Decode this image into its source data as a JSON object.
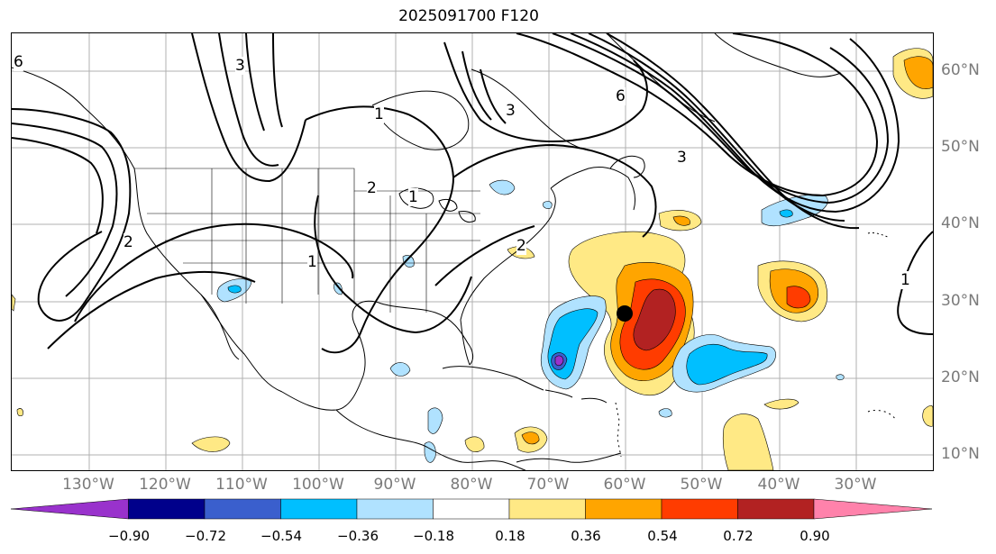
{
  "title": "2025091700 F120",
  "lat_labels": [
    "60°N",
    "50°N",
    "40°N",
    "30°N",
    "20°N",
    "10°N"
  ],
  "lon_labels": [
    "130°W",
    "120°W",
    "110°W",
    "100°W",
    "90°W",
    "80°W",
    "70°W",
    "60°W",
    "50°W",
    "40°W",
    "30°W"
  ],
  "contour_labels": [
    "6",
    "3",
    "1",
    "3",
    "2",
    "2",
    "1",
    "1",
    "6",
    "1",
    "3",
    "2"
  ],
  "colorbar": {
    "ticks": [
      "−0.90",
      "−0.72",
      "−0.54",
      "−0.36",
      "−0.18",
      "0.18",
      "0.36",
      "0.54",
      "0.72",
      "0.90"
    ],
    "colors": [
      "#9932cc",
      "#00008b",
      "#3a5fcd",
      "#00bfff",
      "#b0e2ff",
      "#ffffff",
      "#ffe985",
      "#ffa500",
      "#ff3c00",
      "#b22222",
      "#ff82ab"
    ]
  },
  "colors": {
    "pos_low": "#ffe985",
    "pos_mid": "#ffa500",
    "pos_high": "#ff3c00",
    "pos_max": "#b22222",
    "neg_low": "#b0e2ff",
    "neg_mid": "#00bfff",
    "neg_high": "#3a5fcd",
    "neg_max": "#9932cc",
    "grid": "#b0b0b0",
    "coast": "#000000"
  },
  "storm_marker": {
    "lon": "60°W",
    "lat": "28°N"
  }
}
